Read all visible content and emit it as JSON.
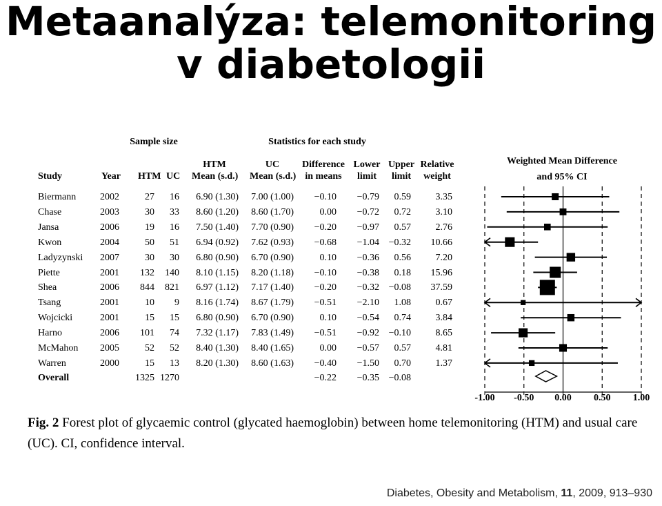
{
  "slide": {
    "title_line1": "Metaanalýza: telemonitoring",
    "title_line2": "v diabetologii"
  },
  "table": {
    "group_headers": {
      "sample_size": "Sample size",
      "statistics": "Statistics for each study"
    },
    "columns": {
      "study": "Study",
      "year": "Year",
      "htm": "HTM",
      "uc": "UC",
      "htm_mean_1": "HTM",
      "htm_mean_2": "Mean (s.d.)",
      "uc_mean_1": "UC",
      "uc_mean_2": "Mean (s.d.)",
      "diff_1": "Difference",
      "diff_2": "in means",
      "lower_1": "Lower",
      "lower_2": "limit",
      "upper_1": "Upper",
      "upper_2": "limit",
      "weight_1": "Relative",
      "weight_2": "weight"
    },
    "rows": [
      {
        "study": "Biermann",
        "year": "2002",
        "htm": "27",
        "uc": "16",
        "htm_mean": "6.90 (1.30)",
        "uc_mean": "7.00 (1.00)",
        "diff": "−0.10",
        "lower": "−0.79",
        "upper": "0.59",
        "weight": "3.35"
      },
      {
        "study": "Chase",
        "year": "2003",
        "htm": "30",
        "uc": "33",
        "htm_mean": "8.60 (1.20)",
        "uc_mean": "8.60 (1.70)",
        "diff": "0.00",
        "lower": "−0.72",
        "upper": "0.72",
        "weight": "3.10"
      },
      {
        "study": "Jansa",
        "year": "2006",
        "htm": "19",
        "uc": "16",
        "htm_mean": "7.50 (1.40)",
        "uc_mean": "7.70 (0.90)",
        "diff": "−0.20",
        "lower": "−0.97",
        "upper": "0.57",
        "weight": "2.76"
      },
      {
        "study": "Kwon",
        "year": "2004",
        "htm": "50",
        "uc": "51",
        "htm_mean": "6.94 (0.92)",
        "uc_mean": "7.62 (0.93)",
        "diff": "−0.68",
        "lower": "−1.04",
        "upper": "−0.32",
        "weight": "10.66"
      },
      {
        "study": "Ladyzynski",
        "year": "2007",
        "htm": "30",
        "uc": "30",
        "htm_mean": "6.80 (0.90)",
        "uc_mean": "6.70 (0.90)",
        "diff": "0.10",
        "lower": "−0.36",
        "upper": "0.56",
        "weight": "7.20"
      },
      {
        "study": "Piette",
        "year": "2001",
        "htm": "132",
        "uc": "140",
        "htm_mean": "8.10 (1.15)",
        "uc_mean": "8.20 (1.18)",
        "diff": "−0.10",
        "lower": "−0.38",
        "upper": "0.18",
        "weight": "15.96"
      },
      {
        "study": "Shea",
        "year": "2006",
        "htm": "844",
        "uc": "821",
        "htm_mean": "6.97 (1.12)",
        "uc_mean": "7.17 (1.40)",
        "diff": "−0.20",
        "lower": "−0.32",
        "upper": "−0.08",
        "weight": "37.59"
      },
      {
        "study": "Tsang",
        "year": "2001",
        "htm": "10",
        "uc": "9",
        "htm_mean": "8.16 (1.74)",
        "uc_mean": "8.67 (1.79)",
        "diff": "−0.51",
        "lower": "−2.10",
        "upper": "1.08",
        "weight": "0.67"
      },
      {
        "study": "Wojcicki",
        "year": "2001",
        "htm": "15",
        "uc": "15",
        "htm_mean": "6.80 (0.90)",
        "uc_mean": "6.70 (0.90)",
        "diff": "0.10",
        "lower": "−0.54",
        "upper": "0.74",
        "weight": "3.84"
      },
      {
        "study": "Harno",
        "year": "2006",
        "htm": "101",
        "uc": "74",
        "htm_mean": "7.32 (1.17)",
        "uc_mean": "7.83 (1.49)",
        "diff": "−0.51",
        "lower": "−0.92",
        "upper": "−0.10",
        "weight": "8.65"
      },
      {
        "study": "McMahon",
        "year": "2005",
        "htm": "52",
        "uc": "52",
        "htm_mean": "8.40 (1.30)",
        "uc_mean": "8.40 (1.65)",
        "diff": "0.00",
        "lower": "−0.57",
        "upper": "0.57",
        "weight": "4.81"
      },
      {
        "study": "Warren",
        "year": "2000",
        "htm": "15",
        "uc": "13",
        "htm_mean": "8.20 (1.30)",
        "uc_mean": "8.60 (1.63)",
        "diff": "−0.40",
        "lower": "−1.50",
        "upper": "0.70",
        "weight": "1.37"
      }
    ],
    "overall": {
      "study": "Overall",
      "htm": "1325",
      "uc": "1270",
      "diff": "−0.22",
      "lower": "−0.35",
      "upper": "−0.08"
    }
  },
  "chart_data": {
    "type": "forest",
    "title_line1": "Weighted Mean Difference",
    "title_line2": "and 95% CI",
    "xlim": [
      -1.0,
      1.0
    ],
    "x_ticks": [
      -1.0,
      -0.5,
      0.0,
      0.5,
      1.0
    ],
    "x_tick_labels": [
      "-1.00",
      "-0.50",
      "0.00",
      "0.50",
      "1.00"
    ],
    "studies": [
      {
        "name": "Biermann",
        "mean": -0.1,
        "lower": -0.79,
        "upper": 0.59,
        "weight": 3.35
      },
      {
        "name": "Chase",
        "mean": 0.0,
        "lower": -0.72,
        "upper": 0.72,
        "weight": 3.1
      },
      {
        "name": "Jansa",
        "mean": -0.2,
        "lower": -0.97,
        "upper": 0.57,
        "weight": 2.76
      },
      {
        "name": "Kwon",
        "mean": -0.68,
        "lower": -1.04,
        "upper": -0.32,
        "weight": 10.66
      },
      {
        "name": "Ladyzynski",
        "mean": 0.1,
        "lower": -0.36,
        "upper": 0.56,
        "weight": 7.2
      },
      {
        "name": "Piette",
        "mean": -0.1,
        "lower": -0.38,
        "upper": 0.18,
        "weight": 15.96
      },
      {
        "name": "Shea",
        "mean": -0.2,
        "lower": -0.32,
        "upper": -0.08,
        "weight": 37.59
      },
      {
        "name": "Tsang",
        "mean": -0.51,
        "lower": -2.1,
        "upper": 1.08,
        "weight": 0.67
      },
      {
        "name": "Wojcicki",
        "mean": 0.1,
        "lower": -0.54,
        "upper": 0.74,
        "weight": 3.84
      },
      {
        "name": "Harno",
        "mean": -0.51,
        "lower": -0.92,
        "upper": -0.1,
        "weight": 8.65
      },
      {
        "name": "McMahon",
        "mean": 0.0,
        "lower": -0.57,
        "upper": 0.57,
        "weight": 4.81
      },
      {
        "name": "Warren",
        "mean": -0.4,
        "lower": -1.5,
        "upper": 0.7,
        "weight": 1.37
      }
    ],
    "overall": {
      "mean": -0.22,
      "lower": -0.35,
      "upper": -0.08
    }
  },
  "caption": {
    "label": "Fig. 2",
    "text": "Forest plot of glycaemic control (glycated haemoglobin) between home telemonitoring (HTM) and usual care (UC). CI, confidence interval."
  },
  "citation": {
    "journal": "Diabetes, Obesity and Metabolism,",
    "volume": "11",
    "rest": ", 2009, 913–930"
  }
}
